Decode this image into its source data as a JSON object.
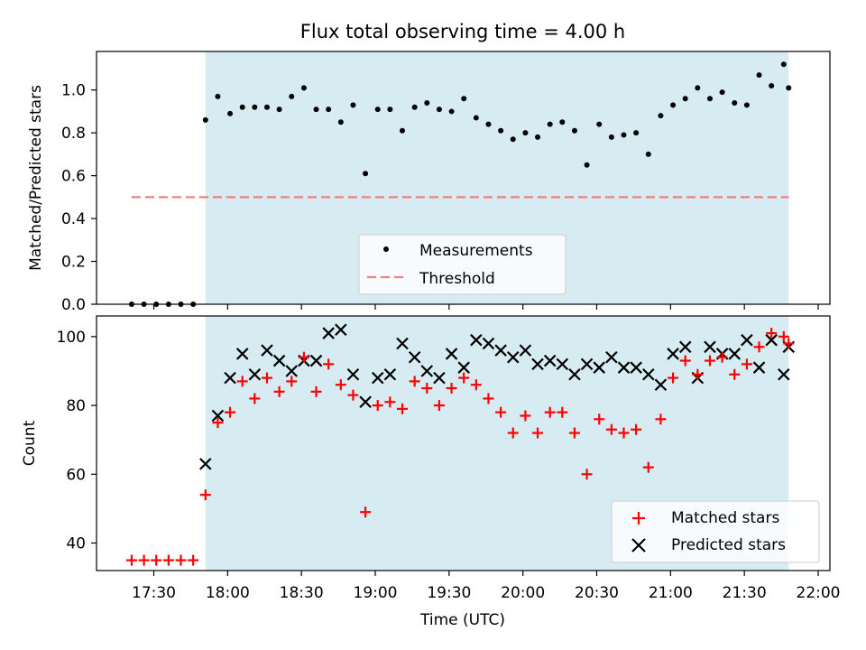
{
  "chart_data": {
    "title": "Flux total observing time = 4.00 h",
    "xlabel": "Time (UTC)",
    "xticks": [
      "17:30",
      "18:00",
      "18:30",
      "19:00",
      "19:30",
      "20:00",
      "20:30",
      "21:00",
      "21:30",
      "22:00"
    ],
    "shaded_region": {
      "start": "17:51",
      "end": "21:48",
      "color": "#add8e6"
    },
    "panels": [
      {
        "type": "scatter",
        "ylabel": "Matched/Predicted stars",
        "ylim": [
          0,
          1.18
        ],
        "yticks": [
          "0.0",
          "0.2",
          "0.4",
          "0.6",
          "0.8",
          "1.0"
        ],
        "legend_position": "lower center",
        "threshold": {
          "name": "Threshold",
          "value": 0.5,
          "x_start": "17:21",
          "x_end": "21:48",
          "color": "#f08080"
        },
        "series": [
          {
            "name": "Measurements",
            "color": "#000000",
            "marker": "dot",
            "x": [
              "17:21",
              "17:26",
              "17:31",
              "17:36",
              "17:41",
              "17:46",
              "17:51",
              "17:56",
              "18:01",
              "18:06",
              "18:11",
              "18:16",
              "18:21",
              "18:26",
              "18:31",
              "18:36",
              "18:41",
              "18:46",
              "18:51",
              "18:56",
              "19:01",
              "19:06",
              "19:11",
              "19:16",
              "19:21",
              "19:26",
              "19:31",
              "19:36",
              "19:41",
              "19:46",
              "19:51",
              "19:56",
              "20:01",
              "20:06",
              "20:11",
              "20:16",
              "20:21",
              "20:26",
              "20:31",
              "20:36",
              "20:41",
              "20:46",
              "20:51",
              "20:56",
              "21:01",
              "21:06",
              "21:11",
              "21:16",
              "21:21",
              "21:26",
              "21:31",
              "21:36",
              "21:41",
              "21:46",
              "21:48"
            ],
            "values": [
              0.0,
              0.0,
              0.0,
              0.0,
              0.0,
              0.0,
              0.86,
              0.97,
              0.89,
              0.92,
              0.92,
              0.92,
              0.91,
              0.97,
              1.01,
              0.91,
              0.91,
              0.85,
              0.93,
              0.61,
              0.91,
              0.91,
              0.81,
              0.92,
              0.94,
              0.91,
              0.9,
              0.96,
              0.87,
              0.84,
              0.81,
              0.77,
              0.8,
              0.78,
              0.84,
              0.85,
              0.81,
              0.65,
              0.84,
              0.78,
              0.79,
              0.8,
              0.7,
              0.88,
              0.93,
              0.96,
              1.01,
              0.96,
              0.99,
              0.94,
              0.93,
              1.07,
              1.02,
              1.12,
              1.01
            ]
          }
        ]
      },
      {
        "type": "scatter",
        "ylabel": "Count",
        "ylim": [
          32,
          106
        ],
        "yticks": [
          "40",
          "60",
          "80",
          "100"
        ],
        "legend_position": "lower right",
        "series": [
          {
            "name": "Matched stars",
            "color": "#ff0000",
            "marker": "plus",
            "x": [
              "17:21",
              "17:26",
              "17:31",
              "17:36",
              "17:41",
              "17:46",
              "17:51",
              "17:56",
              "18:01",
              "18:06",
              "18:11",
              "18:16",
              "18:21",
              "18:26",
              "18:31",
              "18:36",
              "18:41",
              "18:46",
              "18:51",
              "18:56",
              "19:01",
              "19:06",
              "19:11",
              "19:16",
              "19:21",
              "19:26",
              "19:31",
              "19:36",
              "19:41",
              "19:46",
              "19:51",
              "19:56",
              "20:01",
              "20:06",
              "20:11",
              "20:16",
              "20:21",
              "20:26",
              "20:31",
              "20:36",
              "20:41",
              "20:46",
              "20:51",
              "20:56",
              "21:01",
              "21:06",
              "21:11",
              "21:16",
              "21:21",
              "21:26",
              "21:31",
              "21:36",
              "21:41",
              "21:46",
              "21:48"
            ],
            "values": [
              35,
              35,
              35,
              35,
              35,
              35,
              54,
              75,
              78,
              87,
              82,
              88,
              84,
              87,
              94,
              84,
              92,
              86,
              83,
              49,
              80,
              81,
              79,
              87,
              85,
              80,
              85,
              88,
              86,
              82,
              78,
              72,
              77,
              72,
              78,
              78,
              72,
              60,
              76,
              73,
              72,
              73,
              62,
              76,
              88,
              93,
              89,
              93,
              94,
              89,
              92,
              97,
              101,
              100,
              98
            ]
          },
          {
            "name": "Predicted stars",
            "color": "#000000",
            "marker": "x",
            "x": [
              "17:51",
              "17:56",
              "18:01",
              "18:06",
              "18:11",
              "18:16",
              "18:21",
              "18:26",
              "18:31",
              "18:36",
              "18:41",
              "18:46",
              "18:51",
              "18:56",
              "19:01",
              "19:06",
              "19:11",
              "19:16",
              "19:21",
              "19:26",
              "19:31",
              "19:36",
              "19:41",
              "19:46",
              "19:51",
              "19:56",
              "20:01",
              "20:06",
              "20:11",
              "20:16",
              "20:21",
              "20:26",
              "20:31",
              "20:36",
              "20:41",
              "20:46",
              "20:51",
              "20:56",
              "21:01",
              "21:06",
              "21:11",
              "21:16",
              "21:21",
              "21:26",
              "21:31",
              "21:36",
              "21:41",
              "21:46",
              "21:48"
            ],
            "values": [
              63,
              77,
              88,
              95,
              89,
              96,
              93,
              90,
              93,
              93,
              101,
              102,
              89,
              81,
              88,
              89,
              98,
              94,
              90,
              88,
              95,
              91,
              99,
              98,
              96,
              94,
              96,
              92,
              93,
              92,
              89,
              92,
              91,
              94,
              91,
              91,
              89,
              86,
              95,
              97,
              88,
              97,
              95,
              95,
              99,
              91,
              99,
              89,
              97
            ]
          }
        ]
      }
    ]
  }
}
